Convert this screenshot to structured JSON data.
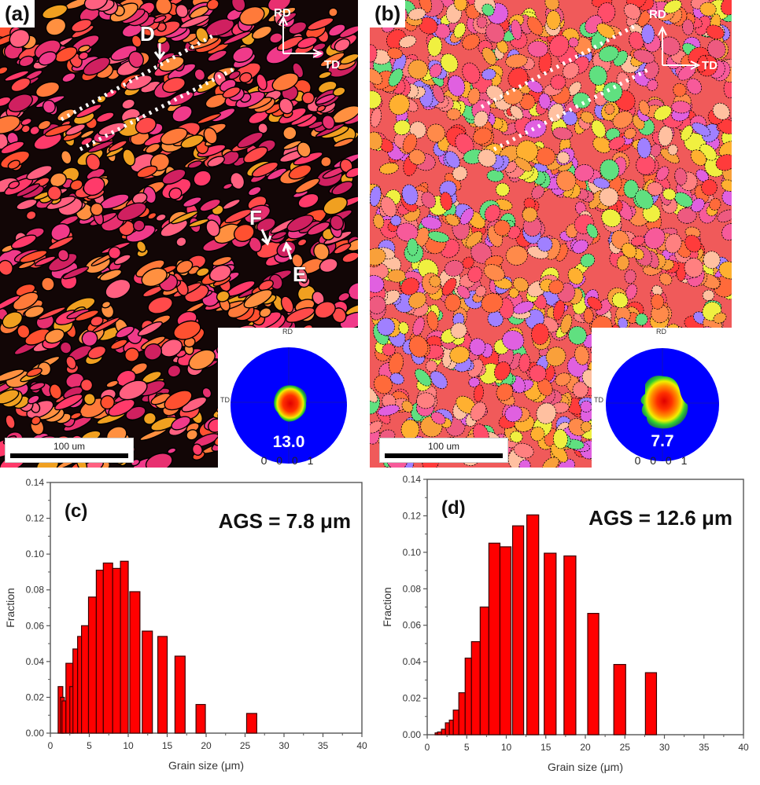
{
  "panels": {
    "a": {
      "label": "(a)",
      "annotations": [
        "D",
        "F",
        "E"
      ],
      "directions": {
        "rd": "RD",
        "td": "TD"
      },
      "scale_bar": "100 um",
      "pole_figure": {
        "rd": "RD",
        "td": "TD",
        "max_intensity": "13.0",
        "plane": "0 0 0 1"
      }
    },
    "b": {
      "label": "(b)",
      "directions": {
        "rd": "RD",
        "td": "TD"
      },
      "scale_bar": "100 um",
      "pole_figure": {
        "rd": "RD",
        "td": "TD",
        "max_intensity": "7.7",
        "plane": "0 0 0 1"
      }
    }
  },
  "colors": {
    "bar_fill": "#ff0000",
    "bar_stroke": "#3a0000",
    "pf_background": "#0000ff",
    "axis": "#555555"
  },
  "chart_data": [
    {
      "type": "bar",
      "panel_label": "(c)",
      "annotation": "AGS = 7.8 μm",
      "xlabel": "Grain size (μm)",
      "ylabel": "Fraction",
      "xlim": [
        0,
        40
      ],
      "ylim": [
        0,
        0.14
      ],
      "xticks": [
        "0",
        "5",
        "10",
        "15",
        "20",
        "25",
        "30",
        "35",
        "40"
      ],
      "yticks": [
        "0.00",
        "0.02",
        "0.04",
        "0.06",
        "0.08",
        "0.10",
        "0.12",
        "0.14"
      ],
      "bars": [
        {
          "x0": 1.0,
          "x1": 1.6,
          "value": 0.026
        },
        {
          "x0": 1.3,
          "x1": 1.8,
          "value": 0.02
        },
        {
          "x0": 1.5,
          "x1": 2.0,
          "value": 0.018
        },
        {
          "x0": 2.0,
          "x1": 2.9,
          "value": 0.039
        },
        {
          "x0": 2.5,
          "x1": 3.0,
          "value": 0.026
        },
        {
          "x0": 2.9,
          "x1": 3.5,
          "value": 0.047
        },
        {
          "x0": 3.5,
          "x1": 4.0,
          "value": 0.054
        },
        {
          "x0": 4.0,
          "x1": 4.9,
          "value": 0.06
        },
        {
          "x0": 4.9,
          "x1": 5.9,
          "value": 0.076
        },
        {
          "x0": 5.9,
          "x1": 6.8,
          "value": 0.091
        },
        {
          "x0": 6.8,
          "x1": 8.0,
          "value": 0.095
        },
        {
          "x0": 8.0,
          "x1": 9.0,
          "value": 0.092
        },
        {
          "x0": 9.0,
          "x1": 10.0,
          "value": 0.096
        },
        {
          "x0": 10.2,
          "x1": 11.5,
          "value": 0.079
        },
        {
          "x0": 11.8,
          "x1": 13.1,
          "value": 0.057
        },
        {
          "x0": 13.8,
          "x1": 15.0,
          "value": 0.054
        },
        {
          "x0": 16.0,
          "x1": 17.3,
          "value": 0.043
        },
        {
          "x0": 18.7,
          "x1": 19.9,
          "value": 0.016
        },
        {
          "x0": 25.2,
          "x1": 26.5,
          "value": 0.011
        }
      ]
    },
    {
      "type": "bar",
      "panel_label": "(d)",
      "annotation": "AGS = 12.6 μm",
      "xlabel": "Grain size (μm)",
      "ylabel": "Fraction",
      "xlim": [
        0,
        40
      ],
      "ylim": [
        0,
        0.14
      ],
      "xticks": [
        "0",
        "5",
        "10",
        "15",
        "20",
        "25",
        "30",
        "35",
        "40"
      ],
      "yticks": [
        "0.00",
        "0.02",
        "0.04",
        "0.06",
        "0.08",
        "0.10",
        "0.12",
        "0.14"
      ],
      "bars": [
        {
          "x0": 1.0,
          "x1": 1.3,
          "value": 0.001
        },
        {
          "x0": 1.3,
          "x1": 1.8,
          "value": 0.0015
        },
        {
          "x0": 1.8,
          "x1": 2.3,
          "value": 0.003
        },
        {
          "x0": 2.3,
          "x1": 2.8,
          "value": 0.0065
        },
        {
          "x0": 2.8,
          "x1": 3.3,
          "value": 0.008
        },
        {
          "x0": 3.3,
          "x1": 4.0,
          "value": 0.0135
        },
        {
          "x0": 4.0,
          "x1": 4.8,
          "value": 0.023
        },
        {
          "x0": 4.8,
          "x1": 5.6,
          "value": 0.042
        },
        {
          "x0": 5.6,
          "x1": 6.7,
          "value": 0.051
        },
        {
          "x0": 6.7,
          "x1": 7.8,
          "value": 0.07
        },
        {
          "x0": 7.8,
          "x1": 9.2,
          "value": 0.105
        },
        {
          "x0": 9.2,
          "x1": 10.6,
          "value": 0.103
        },
        {
          "x0": 10.8,
          "x1": 12.2,
          "value": 0.1145
        },
        {
          "x0": 12.6,
          "x1": 14.1,
          "value": 0.1205
        },
        {
          "x0": 14.8,
          "x1": 16.3,
          "value": 0.0995
        },
        {
          "x0": 17.3,
          "x1": 18.8,
          "value": 0.098
        },
        {
          "x0": 20.3,
          "x1": 21.7,
          "value": 0.0665
        },
        {
          "x0": 23.6,
          "x1": 25.1,
          "value": 0.0385
        },
        {
          "x0": 27.6,
          "x1": 29.0,
          "value": 0.034
        }
      ]
    }
  ]
}
